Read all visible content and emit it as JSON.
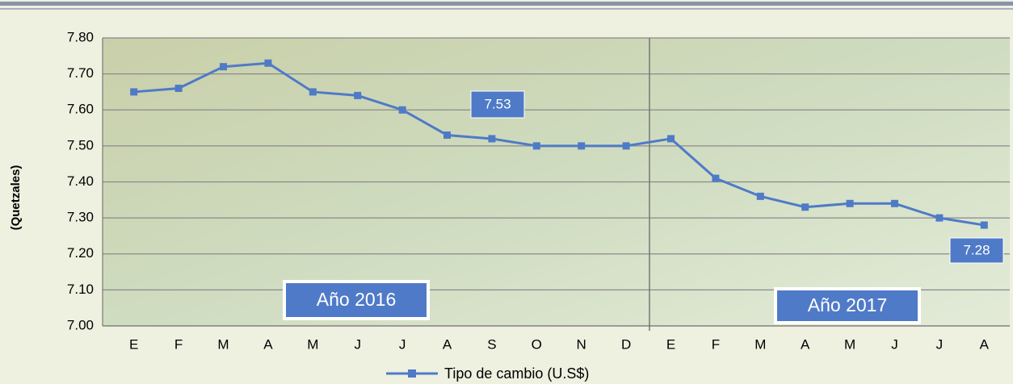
{
  "chart_data": {
    "type": "line",
    "y_label": "(Quetzales)",
    "categories": [
      "E",
      "F",
      "M",
      "A",
      "M",
      "J",
      "J",
      "A",
      "S",
      "O",
      "N",
      "D",
      "E",
      "F",
      "M",
      "A",
      "M",
      "J",
      "J",
      "A"
    ],
    "series": [
      {
        "name": "Tipo de cambio (U.S$)",
        "color": "#4f7ac7",
        "values": [
          7.65,
          7.66,
          7.72,
          7.73,
          7.65,
          7.64,
          7.6,
          7.53,
          7.52,
          7.5,
          7.5,
          7.5,
          7.52,
          7.41,
          7.36,
          7.33,
          7.34,
          7.34,
          7.3,
          7.28
        ]
      }
    ],
    "annotations": [
      "Año 2016",
      "Año 2017"
    ],
    "ylim": [
      7.0,
      7.8
    ],
    "yticks": [
      {
        "value": 7.0,
        "label": "7.00"
      },
      {
        "value": 7.1,
        "label": "7.10"
      },
      {
        "value": 7.2,
        "label": "7.20"
      },
      {
        "value": 7.3,
        "label": "7.30"
      },
      {
        "value": 7.4,
        "label": "7.40"
      },
      {
        "value": 7.5,
        "label": "7.50"
      },
      {
        "value": 7.6,
        "label": "7.60"
      },
      {
        "value": 7.7,
        "label": "7.70"
      },
      {
        "value": 7.8,
        "label": "7.80"
      }
    ],
    "grid": true,
    "legend": "bottom"
  }
}
